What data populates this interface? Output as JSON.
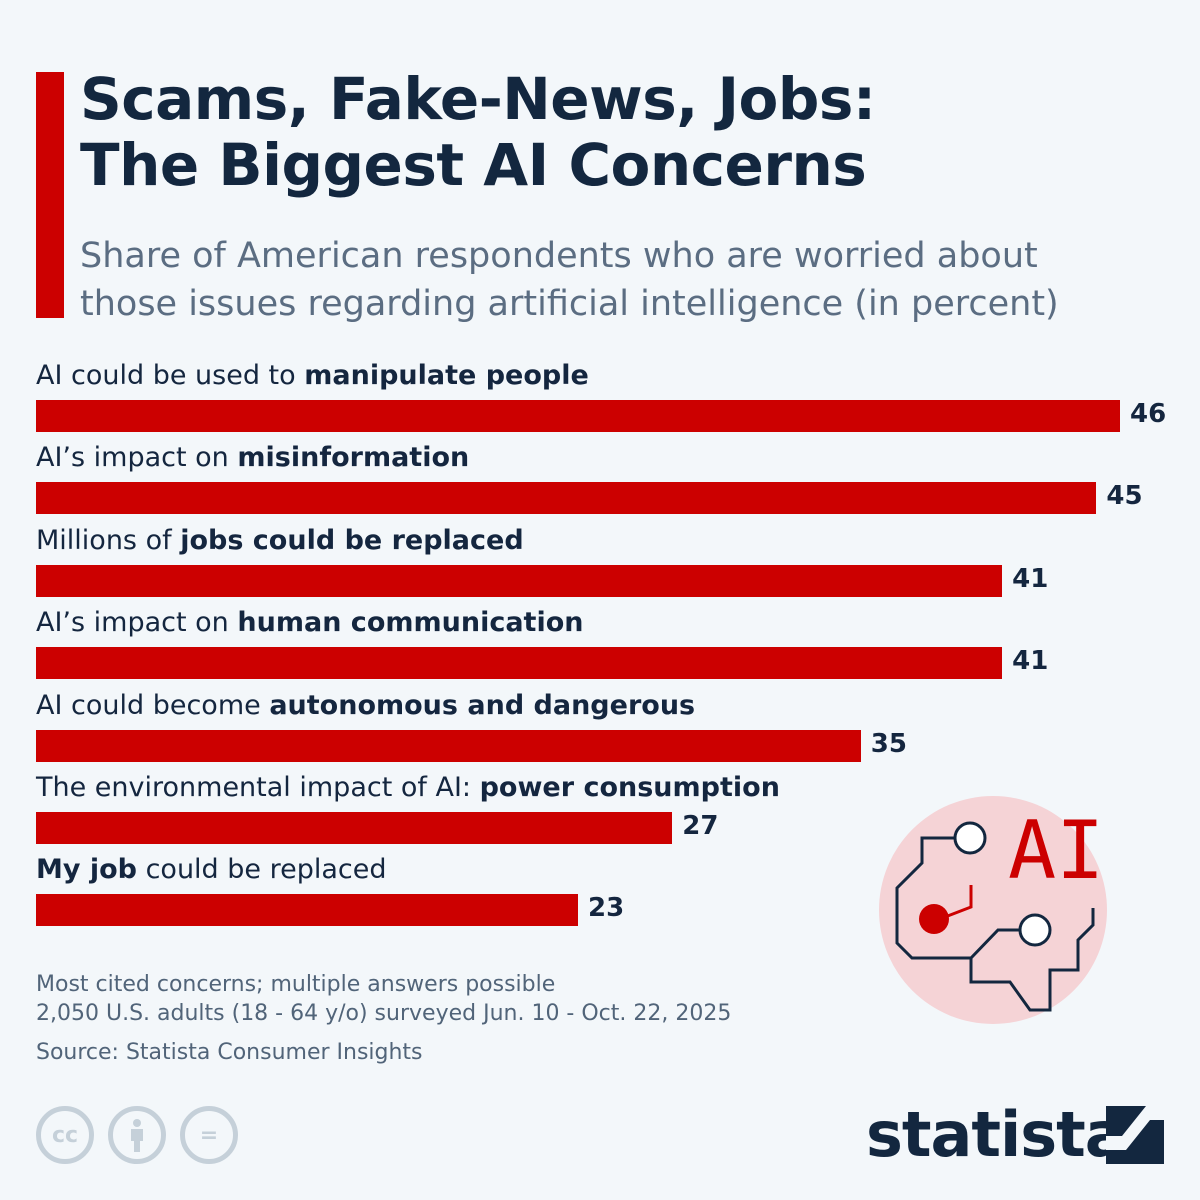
{
  "title_line1": "Scams, Fake-News, Jobs:",
  "title_line2": "The Biggest AI Concerns",
  "subtitle_line1": "Share of American respondents who are worried about",
  "subtitle_line2": "those issues regarding artificial intelligence (in percent)",
  "chart_data": {
    "type": "bar",
    "orientation": "horizontal",
    "categories": [
      {
        "pre": "AI could be used to ",
        "bold": "manipulate people",
        "post": ""
      },
      {
        "pre": "AI’s impact on ",
        "bold": "misinformation",
        "post": ""
      },
      {
        "pre": "Millions of ",
        "bold": "jobs could be replaced",
        "post": ""
      },
      {
        "pre": "AI’s impact on ",
        "bold": "human communication",
        "post": ""
      },
      {
        "pre": "AI could become ",
        "bold": "autonomous and dangerous",
        "post": ""
      },
      {
        "pre": "The environmental impact of AI: ",
        "bold": "power consumption",
        "post": ""
      },
      {
        "pre": "",
        "bold": "My job",
        "post": " could be replaced"
      }
    ],
    "values": [
      46,
      45,
      41,
      41,
      35,
      27,
      23
    ],
    "bar_color": "#cc0000",
    "grid": false
  },
  "notes_line1": "Most cited concerns; multiple answers possible",
  "notes_line2": "2,050 U.S. adults (18 - 64 y/o) surveyed Jun. 10 - Oct. 22, 2025",
  "source": "Source: Statista Consumer Insights",
  "illustration_text": "AI",
  "license_icons": [
    "cc-icon",
    "attribution-icon",
    "no-derivatives-icon"
  ],
  "license_cc": "cc",
  "license_nd": "=",
  "logo": "statista"
}
